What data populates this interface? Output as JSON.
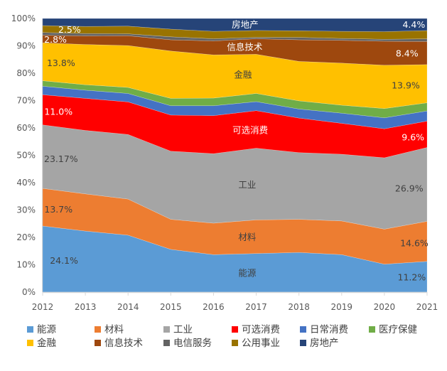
{
  "chart_data": {
    "type": "area",
    "stacked": "percent",
    "title": "",
    "xlabel": "",
    "ylabel": "",
    "x": [
      2012,
      2013,
      2014,
      2015,
      2016,
      2017,
      2018,
      2019,
      2020,
      2021
    ],
    "x_tick_labels": [
      "2012",
      "2013",
      "2014",
      "2015",
      "2016",
      "2017",
      "2018",
      "2019",
      "2020",
      "2021"
    ],
    "ylim": [
      0,
      100
    ],
    "y_tick_labels": [
      "0%",
      "10%",
      "20%",
      "30%",
      "40%",
      "50%",
      "60%",
      "70%",
      "80%",
      "90%",
      "100%"
    ],
    "grid": false,
    "legend_position": "bottom",
    "series": [
      {
        "name": "能源",
        "color": "#5B9BD5",
        "values": [
          24.1,
          22.3,
          20.8,
          15.6,
          13.7,
          14.1,
          14.5,
          13.7,
          10.2,
          11.2
        ]
      },
      {
        "name": "材料",
        "color": "#ED7D31",
        "values": [
          13.7,
          13.6,
          13.2,
          11.0,
          11.5,
          12.3,
          12.1,
          12.3,
          12.8,
          14.6
        ]
      },
      {
        "name": "工业",
        "color": "#A5A5A5",
        "values": [
          23.17,
          23.2,
          23.6,
          24.9,
          25.4,
          26.2,
          24.4,
          24.4,
          26.1,
          26.9
        ]
      },
      {
        "name": "可选消费",
        "color": "#FF0000",
        "values": [
          11.0,
          11.7,
          11.9,
          13.2,
          13.9,
          13.7,
          12.6,
          11.3,
          10.6,
          9.6
        ]
      },
      {
        "name": "日常消费",
        "color": "#4472C4",
        "values": [
          3.1,
          3.0,
          3.1,
          3.4,
          3.6,
          3.3,
          3.3,
          3.7,
          4.0,
          3.7
        ]
      },
      {
        "name": "医疗保健",
        "color": "#70AD47",
        "values": [
          2.0,
          2.0,
          2.2,
          2.7,
          2.8,
          3.0,
          3.0,
          2.9,
          3.4,
          3.0
        ]
      },
      {
        "name": "金融",
        "color": "#FFC000",
        "values": [
          13.8,
          14.7,
          15.3,
          17.3,
          15.8,
          14.3,
          14.4,
          15.4,
          15.8,
          13.9
        ]
      },
      {
        "name": "信息技术",
        "color": "#9E480E",
        "values": [
          2.8,
          3.1,
          3.6,
          4.1,
          5.1,
          5.7,
          7.9,
          8.3,
          8.8,
          8.4
        ]
      },
      {
        "name": "电信服务",
        "color": "#636363",
        "values": [
          1.0,
          0.9,
          0.7,
          1.1,
          0.8,
          0.5,
          0.9,
          0.7,
          0.7,
          1.0
        ]
      },
      {
        "name": "公用事业",
        "color": "#997300",
        "values": [
          2.5,
          2.6,
          2.8,
          2.8,
          2.7,
          2.5,
          2.4,
          2.6,
          2.8,
          3.0
        ]
      },
      {
        "name": "房地产",
        "color": "#264478",
        "values": [
          2.6,
          2.9,
          2.8,
          3.9,
          4.7,
          4.4,
          4.5,
          4.7,
          4.8,
          4.4
        ]
      }
    ],
    "annotations": [
      {
        "text": "24.1%",
        "series": 0,
        "x": 2012.5,
        "color": "#404040"
      },
      {
        "text": "13.7%",
        "series": 1,
        "x": 2012.37,
        "color": "#404040"
      },
      {
        "text": "23.17%",
        "series": 2,
        "x": 2012.43,
        "color": "#404040"
      },
      {
        "text": "11.0%",
        "series": 3,
        "x": 2012.37,
        "color": "#FFFFFF"
      },
      {
        "text": "13.8%",
        "series": 6,
        "x": 2012.43,
        "color": "#404040"
      },
      {
        "text": "2.8%",
        "series": 7,
        "x": 2012.3,
        "color": "#FFFFFF"
      },
      {
        "text": "2.5%",
        "series": 9,
        "x": 2012.63,
        "color": "#FFFFFF"
      },
      {
        "text": "房地产",
        "series": 10,
        "x": 2016.74,
        "color": "#FFFFFF"
      },
      {
        "text": "信息技术",
        "series": 7,
        "x": 2016.73,
        "color": "#FFFFFF"
      },
      {
        "text": "金融",
        "series": 6,
        "x": 2016.69,
        "color": "#404040"
      },
      {
        "text": "可选消费",
        "series": 3,
        "x": 2016.86,
        "color": "#FFFFFF"
      },
      {
        "text": "工业",
        "series": 2,
        "x": 2016.79,
        "color": "#404040"
      },
      {
        "text": "材料",
        "series": 1,
        "x": 2016.79,
        "color": "#404040"
      },
      {
        "text": "能源",
        "series": 0,
        "x": 2016.79,
        "color": "#404040"
      },
      {
        "text": "4.4%",
        "series": 10,
        "x": 2020.69,
        "color": "#FFFFFF"
      },
      {
        "text": "8.4%",
        "series": 7,
        "x": 2020.53,
        "color": "#FFFFFF"
      },
      {
        "text": "13.9%",
        "series": 6,
        "x": 2020.5,
        "color": "#404040"
      },
      {
        "text": "9.6%",
        "series": 3,
        "x": 2020.67,
        "color": "#FFFFFF"
      },
      {
        "text": "26.9%",
        "series": 2,
        "x": 2020.58,
        "color": "#404040"
      },
      {
        "text": "14.6%",
        "series": 1,
        "x": 2020.7,
        "color": "#404040"
      },
      {
        "text": "11.2%",
        "series": 0,
        "x": 2020.64,
        "color": "#404040"
      }
    ]
  }
}
